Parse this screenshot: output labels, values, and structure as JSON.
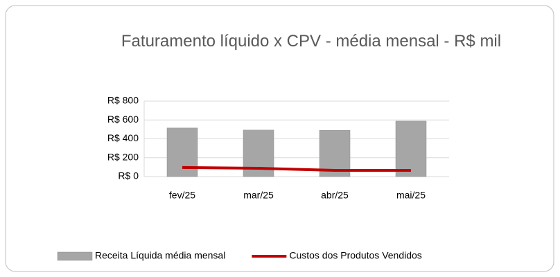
{
  "chart_data": {
    "type": "bar_line",
    "title": "Faturamento líquido x CPV  - média mensal - R$ mil",
    "categories": [
      "fev/25",
      "mar/25",
      "abr/25",
      "mai/25"
    ],
    "series": [
      {
        "name": "Receita Líquida média mensal",
        "type": "bar",
        "color": "#a6a6a6",
        "values": [
          515,
          493,
          490,
          588
        ]
      },
      {
        "name": "Custos dos Produtos Vendidos",
        "type": "line",
        "color": "#c00000",
        "values": [
          96,
          88,
          66,
          66
        ]
      }
    ],
    "ylim": [
      0,
      800
    ],
    "yticks": [
      {
        "value": 0,
        "label": "R$ 0"
      },
      {
        "value": 200,
        "label": "R$ 200"
      },
      {
        "value": 400,
        "label": "R$ 400"
      },
      {
        "value": 600,
        "label": "R$ 600"
      },
      {
        "value": 800,
        "label": "R$ 800"
      }
    ],
    "grid": true,
    "legend": "bottom"
  }
}
